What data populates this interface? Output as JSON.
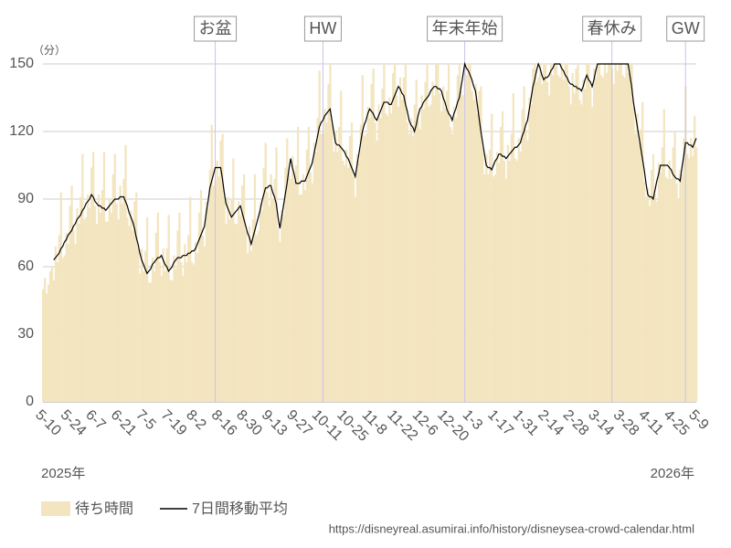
{
  "chart_data": {
    "type": "bar",
    "y_unit": "（分）",
    "ylim": [
      0,
      150
    ],
    "yticks": [
      0,
      30,
      60,
      90,
      120,
      150
    ],
    "grid": true,
    "year_labels": [
      "2025年",
      "2026年"
    ],
    "source": "https://disneyreal.asumirai.info/history/disneysea-crowd-calendar.html",
    "annotations": [
      {
        "label": "お盆",
        "index": 96
      },
      {
        "label": "HW",
        "index": 156
      },
      {
        "label": "年末年始",
        "index": 235
      },
      {
        "label": "春休み",
        "index": 317
      },
      {
        "label": "GW",
        "index": 358
      }
    ],
    "categories": [
      "5-10",
      null,
      null,
      null,
      null,
      null,
      null,
      null,
      null,
      null,
      null,
      null,
      null,
      null,
      "5-24",
      null,
      null,
      null,
      null,
      null,
      null,
      null,
      null,
      null,
      null,
      null,
      null,
      null,
      "6-7",
      null,
      null,
      null,
      null,
      null,
      null,
      null,
      null,
      null,
      null,
      null,
      null,
      null,
      "6-21",
      null,
      null,
      null,
      null,
      null,
      null,
      null,
      null,
      null,
      null,
      null,
      null,
      null,
      "7-5",
      null,
      null,
      null,
      null,
      null,
      null,
      null,
      null,
      null,
      null,
      null,
      null,
      null,
      "7-19",
      null,
      null,
      null,
      null,
      null,
      null,
      null,
      null,
      null,
      null,
      null,
      null,
      null,
      "8-2",
      null,
      null,
      null,
      null,
      null,
      null,
      null,
      null,
      null,
      null,
      null,
      null,
      null,
      "8-16",
      null,
      null,
      null,
      null,
      null,
      null,
      null,
      null,
      null,
      null,
      null,
      null,
      null,
      "8-30",
      null,
      null,
      null,
      null,
      null,
      null,
      null,
      null,
      null,
      null,
      null,
      null,
      null,
      "9-13",
      null,
      null,
      null,
      null,
      null,
      null,
      null,
      null,
      null,
      null,
      null,
      null,
      null,
      "9-27",
      null,
      null,
      null,
      null,
      null,
      null,
      null,
      null,
      null,
      null,
      null,
      null,
      null,
      "10-11",
      null,
      null,
      null,
      null,
      null,
      null,
      null,
      null,
      null,
      null,
      null,
      null,
      null,
      "10-25",
      null,
      null,
      null,
      null,
      null,
      null,
      null,
      null,
      null,
      null,
      null,
      null,
      null,
      "11-8",
      null,
      null,
      null,
      null,
      null,
      null,
      null,
      null,
      null,
      null,
      null,
      null,
      null,
      "11-22",
      null,
      null,
      null,
      null,
      null,
      null,
      null,
      null,
      null,
      null,
      null,
      null,
      null,
      "12-6",
      null,
      null,
      null,
      null,
      null,
      null,
      null,
      null,
      null,
      null,
      null,
      null,
      null,
      "12-20",
      null,
      null,
      null,
      null,
      null,
      null,
      null,
      null,
      null,
      null,
      null,
      null,
      null,
      "1-3",
      null,
      null,
      null,
      null,
      null,
      null,
      null,
      null,
      null,
      null,
      null,
      null,
      null,
      "1-17",
      null,
      null,
      null,
      null,
      null,
      null,
      null,
      null,
      null,
      null,
      null,
      null,
      null,
      "1-31",
      null,
      null,
      null,
      null,
      null,
      null,
      null,
      null,
      null,
      null,
      null,
      null,
      null,
      "2-14",
      null,
      null,
      null,
      null,
      null,
      null,
      null,
      null,
      null,
      null,
      null,
      null,
      null,
      "2-28",
      null,
      null,
      null,
      null,
      null,
      null,
      null,
      null,
      null,
      null,
      null,
      null,
      null,
      "3-14",
      null,
      null,
      null,
      null,
      null,
      null,
      null,
      null,
      null,
      null,
      null,
      null,
      null,
      "3-28",
      null,
      null,
      null,
      null,
      null,
      null,
      null,
      null,
      null,
      null,
      null,
      null,
      null,
      "4-11",
      null,
      null,
      null,
      null,
      null,
      null,
      null,
      null,
      null,
      null,
      null,
      null,
      null,
      "4-25",
      null,
      null,
      null,
      null,
      null,
      null,
      null,
      null,
      null,
      null,
      null,
      null,
      null,
      "5-9"
    ],
    "series": [
      {
        "name": "待ち時間",
        "type": "bar",
        "color": "#f3e5bf",
        "values": [
          50,
          55,
          48,
          52,
          58,
          60,
          54,
          69,
          62,
          74,
          93,
          64,
          65,
          75,
          70,
          87,
          96,
          76,
          70,
          86,
          79,
          91,
          110,
          81,
          82,
          92,
          86,
          104,
          111,
          87,
          79,
          92,
          84,
          94,
          111,
          80,
          80,
          90,
          84,
          101,
          110,
          88,
          81,
          96,
          88,
          99,
          114,
          82,
          78,
          85,
          76,
          89,
          93,
          68,
          57,
          68,
          58,
          67,
          82,
          53,
          53,
          64,
          58,
          75,
          84,
          62,
          56,
          68,
          58,
          68,
          83,
          54,
          54,
          65,
          59,
          76,
          84,
          62,
          56,
          70,
          62,
          74,
          91,
          62,
          61,
          71,
          66,
          84,
          94,
          74,
          69,
          89,
          86,
          103,
          123,
          96,
          98,
          107,
          100,
          116,
          119,
          91,
          79,
          91,
          81,
          90,
          108,
          79,
          79,
          89,
          83,
          96,
          101,
          76,
          66,
          78,
          67,
          81,
          101,
          74,
          76,
          88,
          85,
          104,
          115,
          93,
          87,
          101,
          90,
          99,
          113,
          77,
          71,
          85,
          83,
          104,
          117,
          101,
          99,
          109,
          98,
          105,
          122,
          92,
          92,
          101,
          94,
          112,
          122,
          102,
          97,
          115,
          111,
          126,
          147,
          119,
          119,
          130,
          124,
          141,
          150,
          123,
          111,
          120,
          111,
          122,
          138,
          107,
          105,
          112,
          104,
          118,
          124,
          100,
          91,
          110,
          107,
          123,
          145,
          118,
          119,
          131,
          126,
          141,
          148,
          124,
          116,
          132,
          126,
          139,
          150,
          128,
          127,
          135,
          128,
          146,
          150,
          136,
          131,
          144,
          134,
          144,
          150,
          124,
          119,
          126,
          118,
          132,
          143,
          125,
          121,
          136,
          130,
          142,
          150,
          131,
          132,
          142,
          136,
          150,
          150,
          137,
          129,
          140,
          130,
          138,
          150,
          122,
          119,
          131,
          126,
          145,
          150,
          138,
          136,
          150,
          145,
          150,
          150,
          138,
          134,
          141,
          128,
          138,
          140,
          113,
          101,
          110,
          101,
          112,
          128,
          100,
          101,
          111,
          106,
          122,
          129,
          107,
          99,
          114,
          107,
          119,
          137,
          108,
          107,
          117,
          111,
          130,
          140,
          121,
          116,
          135,
          132,
          148,
          150,
          142,
          144,
          150,
          141,
          150,
          150,
          142,
          136,
          150,
          145,
          150,
          150,
          145,
          144,
          150,
          143,
          150,
          150,
          140,
          132,
          146,
          137,
          148,
          150,
          134,
          132,
          143,
          139,
          150,
          150,
          140,
          131,
          148,
          144,
          150,
          150,
          145,
          144,
          150,
          146,
          150,
          150,
          148,
          141,
          150,
          147,
          150,
          150,
          145,
          144,
          150,
          146,
          150,
          150,
          131,
          119,
          128,
          115,
          121,
          133,
          98,
          91,
          95,
          87,
          103,
          110,
          92,
          89,
          106,
          102,
          113,
          130,
          100,
          99,
          107,
          99,
          113,
          120,
          97,
          90,
          103,
          101,
          117,
          140,
          110,
          108,
          117,
          109,
          127,
          113
        ]
      },
      {
        "name": "7日間移動平均",
        "type": "line",
        "color": "#000000",
        "values": [
          null,
          null,
          null,
          null,
          null,
          null,
          63,
          64,
          65,
          66,
          68,
          69,
          71,
          72,
          74,
          75,
          76,
          78,
          79,
          81,
          82,
          83,
          85,
          86,
          88,
          89,
          90,
          92,
          91,
          89,
          88,
          87,
          87,
          86,
          86,
          85,
          86,
          87,
          88,
          89,
          90,
          90,
          90,
          91,
          91,
          91,
          89,
          87,
          84,
          82,
          80,
          77,
          73,
          70,
          66,
          63,
          61,
          59,
          57,
          58,
          59,
          61,
          62,
          63,
          64,
          64,
          65,
          63,
          61,
          60,
          58,
          59,
          60,
          62,
          63,
          64,
          64,
          64,
          65,
          65,
          65,
          66,
          66,
          67,
          67,
          68,
          70,
          72,
          74,
          76,
          78,
          84,
          89,
          95,
          98,
          101,
          104,
          104,
          104,
          104,
          99,
          93,
          88,
          86,
          84,
          82,
          83,
          84,
          85,
          86,
          87,
          84,
          81,
          78,
          75,
          73,
          70,
          73,
          76,
          79,
          82,
          85,
          89,
          92,
          95,
          95,
          96,
          96,
          93,
          91,
          88,
          82,
          77,
          82,
          87,
          92,
          97,
          103,
          108,
          104,
          101,
          97,
          97,
          97,
          98,
          98,
          98,
          100,
          102,
          104,
          106,
          110,
          114,
          118,
          122,
          124,
          125,
          127,
          128,
          129,
          130,
          125,
          120,
          115,
          114,
          114,
          113,
          112,
          111,
          109,
          108,
          106,
          104,
          102,
          100,
          105,
          110,
          115,
          120,
          123,
          125,
          128,
          130,
          129,
          128,
          126,
          125,
          127,
          129,
          131,
          133,
          133,
          133,
          132,
          132,
          134,
          136,
          138,
          140,
          139,
          137,
          136,
          132,
          129,
          125,
          123,
          122,
          120,
          123,
          127,
          130,
          131,
          133,
          134,
          135,
          136,
          138,
          139,
          140,
          140,
          139,
          139,
          138,
          135,
          133,
          130,
          128,
          127,
          125,
          128,
          130,
          133,
          135,
          140,
          145,
          150,
          148,
          147,
          145,
          143,
          140,
          138,
          132,
          126,
          120,
          115,
          110,
          105,
          104,
          104,
          103,
          105,
          107,
          108,
          110,
          110,
          109,
          109,
          108,
          109,
          110,
          111,
          112,
          113,
          113,
          114,
          115,
          118,
          120,
          123,
          125,
          130,
          135,
          140,
          143,
          147,
          150,
          148,
          145,
          143,
          144,
          144,
          145,
          147,
          148,
          150,
          150,
          150,
          150,
          148,
          147,
          145,
          144,
          142,
          141,
          141,
          140,
          140,
          139,
          139,
          138,
          140,
          143,
          145,
          143,
          142,
          140,
          143,
          147,
          150,
          150,
          150,
          150,
          150,
          150,
          150,
          150,
          150,
          150,
          150,
          150,
          150,
          150,
          150,
          150,
          150,
          150,
          145,
          140,
          133,
          128,
          123,
          118,
          113,
          108,
          103,
          97,
          92,
          91,
          91,
          90,
          94,
          98,
          101,
          105,
          105,
          105,
          105,
          105,
          104,
          103,
          101,
          100,
          99,
          99,
          98,
          104,
          109,
          115,
          115,
          114,
          114,
          113,
          115,
          117
        ]
      }
    ]
  }
}
